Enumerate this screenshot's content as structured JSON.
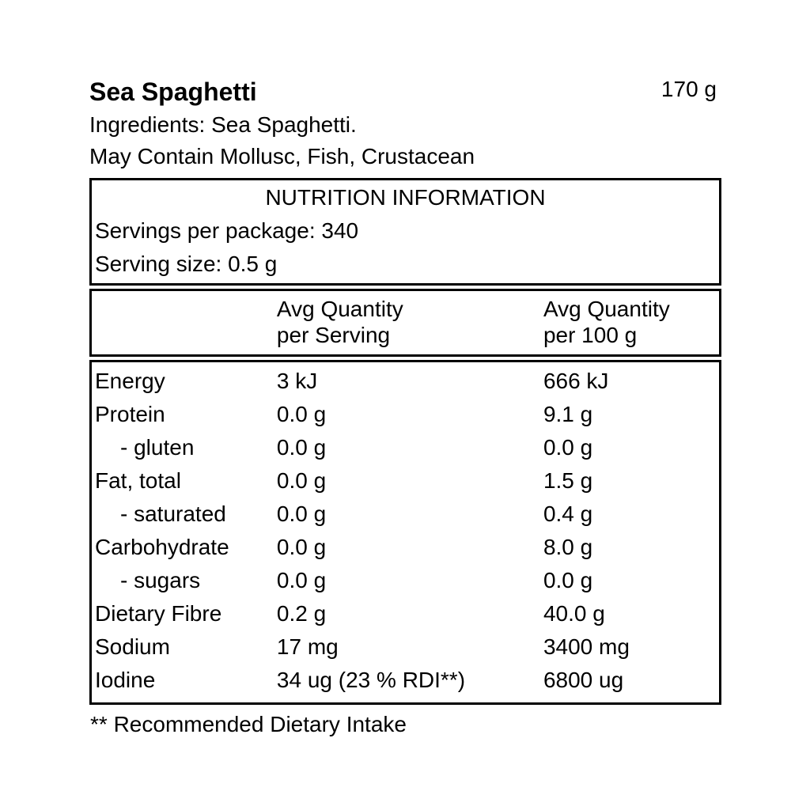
{
  "header": {
    "product_name": "Sea Spaghetti",
    "net_weight": "170 g",
    "ingredients_label": "Ingredients:",
    "ingredients_value": "Sea Spaghetti.",
    "allergen_line": "May Contain Mollusc, Fish, Crustacean"
  },
  "panel": {
    "title": "NUTRITION INFORMATION",
    "servings_per_package_label": "Servings per package:",
    "servings_per_package_value": "340",
    "serving_size_label": "Serving size:",
    "serving_size_value": "0.5 g"
  },
  "table": {
    "col_headers": {
      "serving_line1": "Avg Quantity",
      "serving_line2": "per Serving",
      "per100_line1": "Avg Quantity",
      "per100_line2": "per 100 g"
    },
    "rows": [
      {
        "nutrient": "Energy",
        "per_serving": "3 kJ",
        "per_100g": "666 kJ"
      },
      {
        "nutrient": "Protein",
        "per_serving": "0.0 g",
        "per_100g": "9.1 g"
      },
      {
        "nutrient": "- gluten",
        "per_serving": "0.0 g",
        "per_100g": "0.0 g"
      },
      {
        "nutrient": "Fat, total",
        "per_serving": "0.0 g",
        "per_100g": "1.5 g"
      },
      {
        "nutrient": "- saturated",
        "per_serving": "0.0 g",
        "per_100g": "0.4 g"
      },
      {
        "nutrient": "Carbohydrate",
        "per_serving": "0.0 g",
        "per_100g": "8.0 g"
      },
      {
        "nutrient": "- sugars",
        "per_serving": "0.0 g",
        "per_100g": "0.0 g"
      },
      {
        "nutrient": "Dietary Fibre",
        "per_serving": "0.2 g",
        "per_100g": "40.0 g"
      },
      {
        "nutrient": "Sodium",
        "per_serving": "17 mg",
        "per_100g": "3400 mg"
      },
      {
        "nutrient": "Iodine",
        "per_serving": "34 ug (23 % RDI**)",
        "per_100g": "6800 ug"
      }
    ]
  },
  "footnote": "** Recommended Dietary Intake",
  "colors": {
    "text": "#000000",
    "border": "#000000",
    "background": "#ffffff"
  }
}
